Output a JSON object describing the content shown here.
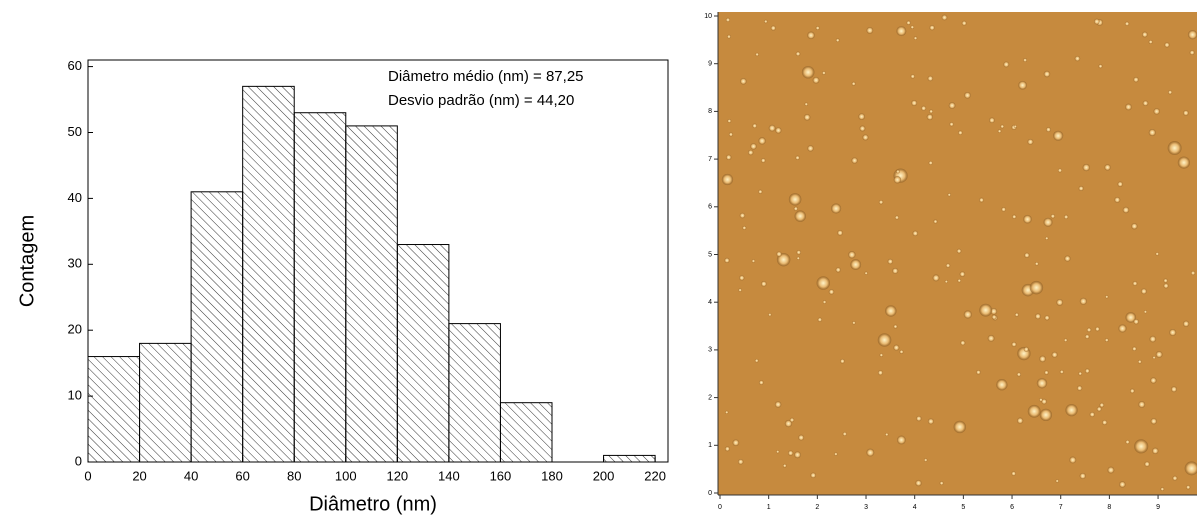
{
  "chart_data": {
    "type": "histogram",
    "bins": [
      0,
      20,
      40,
      60,
      80,
      100,
      120,
      140,
      160,
      180,
      200,
      220
    ],
    "values": [
      16,
      18,
      41,
      57,
      53,
      51,
      33,
      21,
      9,
      0,
      1
    ],
    "xlim": [
      0,
      225
    ],
    "ylim": [
      0,
      61
    ],
    "xticks": [
      0,
      20,
      40,
      60,
      80,
      100,
      120,
      140,
      160,
      180,
      200,
      220
    ],
    "yticks": [
      0,
      10,
      20,
      30,
      40,
      50,
      60
    ],
    "xlabel": "Diâmetro (nm)",
    "ylabel": "Contagem",
    "annotations": [
      "Diâmetro médio (nm) = 87,25",
      "Desvio padrão (nm) = 44,20"
    ],
    "color": "#000000",
    "hatch": true
  },
  "afm_image": {
    "xlim": [
      0,
      9.8
    ],
    "ylim": [
      0,
      10
    ],
    "xticks": [
      0,
      1,
      2,
      3,
      4,
      5,
      6,
      7,
      8,
      9
    ],
    "yticks": [
      0,
      1,
      2,
      3,
      4,
      5,
      6,
      7,
      8,
      9,
      10
    ],
    "color": "#c68a3e"
  }
}
